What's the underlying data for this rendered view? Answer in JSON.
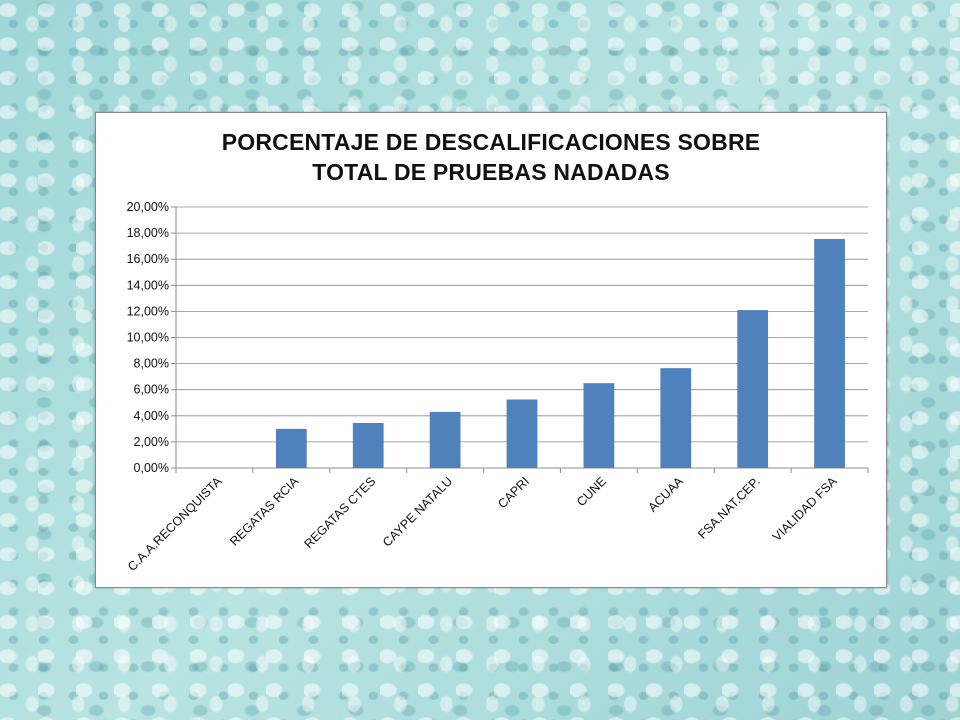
{
  "chart_data": {
    "type": "bar",
    "title_lines": [
      "PORCENTAJE DE DESCALIFICACIONES SOBRE",
      "TOTAL DE PRUEBAS NADADAS"
    ],
    "categories": [
      "C.A.A.RECONQUISTA",
      "REGATAS RCIA",
      "REGATAS CTES",
      "CAYPE NATALU",
      "CAPRI",
      "CUNE",
      "ACUAA",
      "FSA.NAT.CEP.",
      "VIALIDAD FSA"
    ],
    "values": [
      0.0,
      3.0,
      3.45,
      4.3,
      5.25,
      6.5,
      7.65,
      12.1,
      17.55
    ],
    "ylim": [
      0,
      20
    ],
    "y_ticks": [
      "0,00%",
      "2,00%",
      "4,00%",
      "6,00%",
      "8,00%",
      "10,00%",
      "12,00%",
      "14,00%",
      "16,00%",
      "18,00%",
      "20,00%"
    ],
    "grid": true,
    "legend": "none",
    "bar_color": "#4f81bd"
  }
}
